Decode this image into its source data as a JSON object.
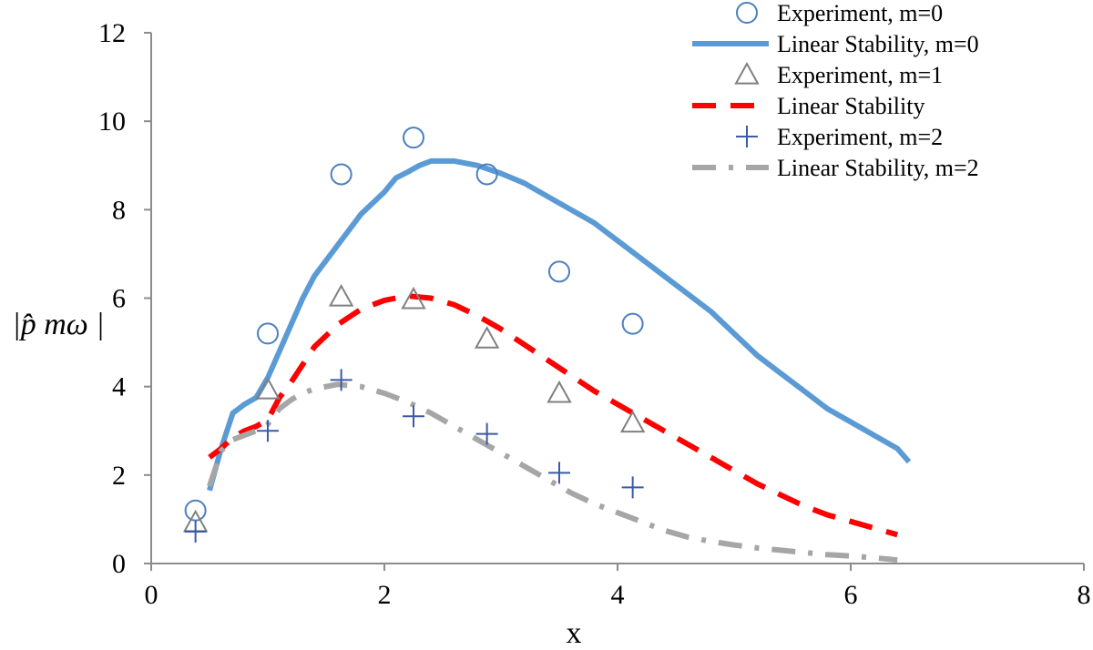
{
  "chart_data": {
    "type": "scatter",
    "title": "",
    "xlabel": "x",
    "ylabel": "|p̂ mω |",
    "xlim": [
      0,
      8
    ],
    "ylim": [
      0,
      12
    ],
    "x_ticks": [
      "0",
      "2",
      "4",
      "6",
      "8"
    ],
    "y_ticks": [
      "0",
      "2",
      "4",
      "6",
      "8",
      "10",
      "12"
    ],
    "grid": false,
    "legend_position": "top-right",
    "series": [
      {
        "name": "Experiment, m=0",
        "kind": "marker",
        "marker": "circle",
        "color": "#4a7fc0",
        "points": [
          [
            0.38,
            1.2
          ],
          [
            1.0,
            5.2
          ],
          [
            1.63,
            8.8
          ],
          [
            2.25,
            9.63
          ],
          [
            2.88,
            8.8
          ],
          [
            3.5,
            6.6
          ],
          [
            4.13,
            5.42
          ]
        ]
      },
      {
        "name": "Linear Stability, m=0",
        "kind": "line",
        "style": "solid",
        "color": "#5b9bd5",
        "points": [
          [
            0.5,
            1.65
          ],
          [
            0.6,
            2.6
          ],
          [
            0.7,
            3.4
          ],
          [
            0.8,
            3.6
          ],
          [
            0.9,
            3.75
          ],
          [
            1.0,
            4.2
          ],
          [
            1.1,
            4.8
          ],
          [
            1.2,
            5.4
          ],
          [
            1.3,
            6.0
          ],
          [
            1.4,
            6.5
          ],
          [
            1.6,
            7.2
          ],
          [
            1.8,
            7.9
          ],
          [
            2.0,
            8.4
          ],
          [
            2.1,
            8.72
          ],
          [
            2.2,
            8.85
          ],
          [
            2.3,
            9.0
          ],
          [
            2.4,
            9.1
          ],
          [
            2.6,
            9.1
          ],
          [
            2.8,
            9.0
          ],
          [
            3.0,
            8.82
          ],
          [
            3.2,
            8.6
          ],
          [
            3.4,
            8.3
          ],
          [
            3.6,
            8.0
          ],
          [
            3.8,
            7.7
          ],
          [
            4.0,
            7.3
          ],
          [
            4.2,
            6.9
          ],
          [
            4.4,
            6.5
          ],
          [
            4.6,
            6.1
          ],
          [
            4.8,
            5.7
          ],
          [
            5.0,
            5.2
          ],
          [
            5.2,
            4.7
          ],
          [
            5.4,
            4.3
          ],
          [
            5.6,
            3.9
          ],
          [
            5.8,
            3.5
          ],
          [
            6.0,
            3.2
          ],
          [
            6.2,
            2.9
          ],
          [
            6.4,
            2.6
          ],
          [
            6.5,
            2.3
          ]
        ]
      },
      {
        "name": "Experiment, m=1",
        "kind": "marker",
        "marker": "triangle",
        "color": "#808080",
        "points": [
          [
            0.38,
            0.93
          ],
          [
            1.0,
            3.93
          ],
          [
            1.63,
            6.03
          ],
          [
            2.25,
            5.97
          ],
          [
            2.88,
            5.08
          ],
          [
            3.5,
            3.85
          ],
          [
            4.13,
            3.18
          ]
        ]
      },
      {
        "name": "Linear Stability",
        "kind": "line",
        "style": "dashed",
        "color": "#ff0000",
        "points": [
          [
            0.5,
            2.4
          ],
          [
            0.6,
            2.6
          ],
          [
            0.7,
            2.85
          ],
          [
            0.8,
            3.0
          ],
          [
            0.9,
            3.1
          ],
          [
            1.0,
            3.25
          ],
          [
            1.1,
            3.75
          ],
          [
            1.2,
            4.1
          ],
          [
            1.3,
            4.5
          ],
          [
            1.4,
            4.9
          ],
          [
            1.6,
            5.4
          ],
          [
            1.8,
            5.75
          ],
          [
            2.0,
            5.95
          ],
          [
            2.2,
            6.05
          ],
          [
            2.4,
            6.0
          ],
          [
            2.6,
            5.85
          ],
          [
            2.8,
            5.6
          ],
          [
            3.0,
            5.3
          ],
          [
            3.2,
            4.95
          ],
          [
            3.4,
            4.6
          ],
          [
            3.6,
            4.25
          ],
          [
            3.8,
            3.9
          ],
          [
            4.0,
            3.6
          ],
          [
            4.2,
            3.3
          ],
          [
            4.4,
            3.0
          ],
          [
            4.6,
            2.7
          ],
          [
            4.8,
            2.4
          ],
          [
            5.0,
            2.1
          ],
          [
            5.2,
            1.8
          ],
          [
            5.4,
            1.55
          ],
          [
            5.6,
            1.3
          ],
          [
            5.8,
            1.1
          ],
          [
            6.0,
            0.95
          ],
          [
            6.2,
            0.8
          ],
          [
            6.4,
            0.65
          ]
        ]
      },
      {
        "name": "Experiment, m=2",
        "kind": "marker",
        "marker": "plus",
        "color": "#3a5ba8",
        "points": [
          [
            0.38,
            0.72
          ],
          [
            1.0,
            3.0
          ],
          [
            1.63,
            4.15
          ],
          [
            2.25,
            3.33
          ],
          [
            2.88,
            2.93
          ],
          [
            3.5,
            2.05
          ],
          [
            4.13,
            1.72
          ]
        ]
      },
      {
        "name": "Linear Stability, m=2",
        "kind": "line",
        "style": "dash-dot",
        "color": "#a6a6a6",
        "points": [
          [
            0.5,
            1.75
          ],
          [
            0.6,
            2.55
          ],
          [
            0.7,
            2.8
          ],
          [
            0.8,
            2.9
          ],
          [
            0.9,
            3.0
          ],
          [
            1.0,
            3.15
          ],
          [
            1.1,
            3.5
          ],
          [
            1.2,
            3.7
          ],
          [
            1.3,
            3.85
          ],
          [
            1.4,
            3.95
          ],
          [
            1.6,
            4.05
          ],
          [
            1.8,
            4.0
          ],
          [
            2.0,
            3.85
          ],
          [
            2.2,
            3.65
          ],
          [
            2.4,
            3.4
          ],
          [
            2.6,
            3.1
          ],
          [
            2.8,
            2.8
          ],
          [
            3.0,
            2.5
          ],
          [
            3.2,
            2.2
          ],
          [
            3.4,
            1.9
          ],
          [
            3.6,
            1.6
          ],
          [
            3.8,
            1.35
          ],
          [
            4.0,
            1.15
          ],
          [
            4.2,
            0.95
          ],
          [
            4.4,
            0.75
          ],
          [
            4.6,
            0.6
          ],
          [
            4.8,
            0.5
          ],
          [
            5.0,
            0.42
          ],
          [
            5.2,
            0.35
          ],
          [
            5.4,
            0.3
          ],
          [
            5.6,
            0.25
          ],
          [
            5.8,
            0.2
          ],
          [
            6.0,
            0.17
          ],
          [
            6.2,
            0.13
          ],
          [
            6.4,
            0.08
          ]
        ]
      }
    ]
  }
}
